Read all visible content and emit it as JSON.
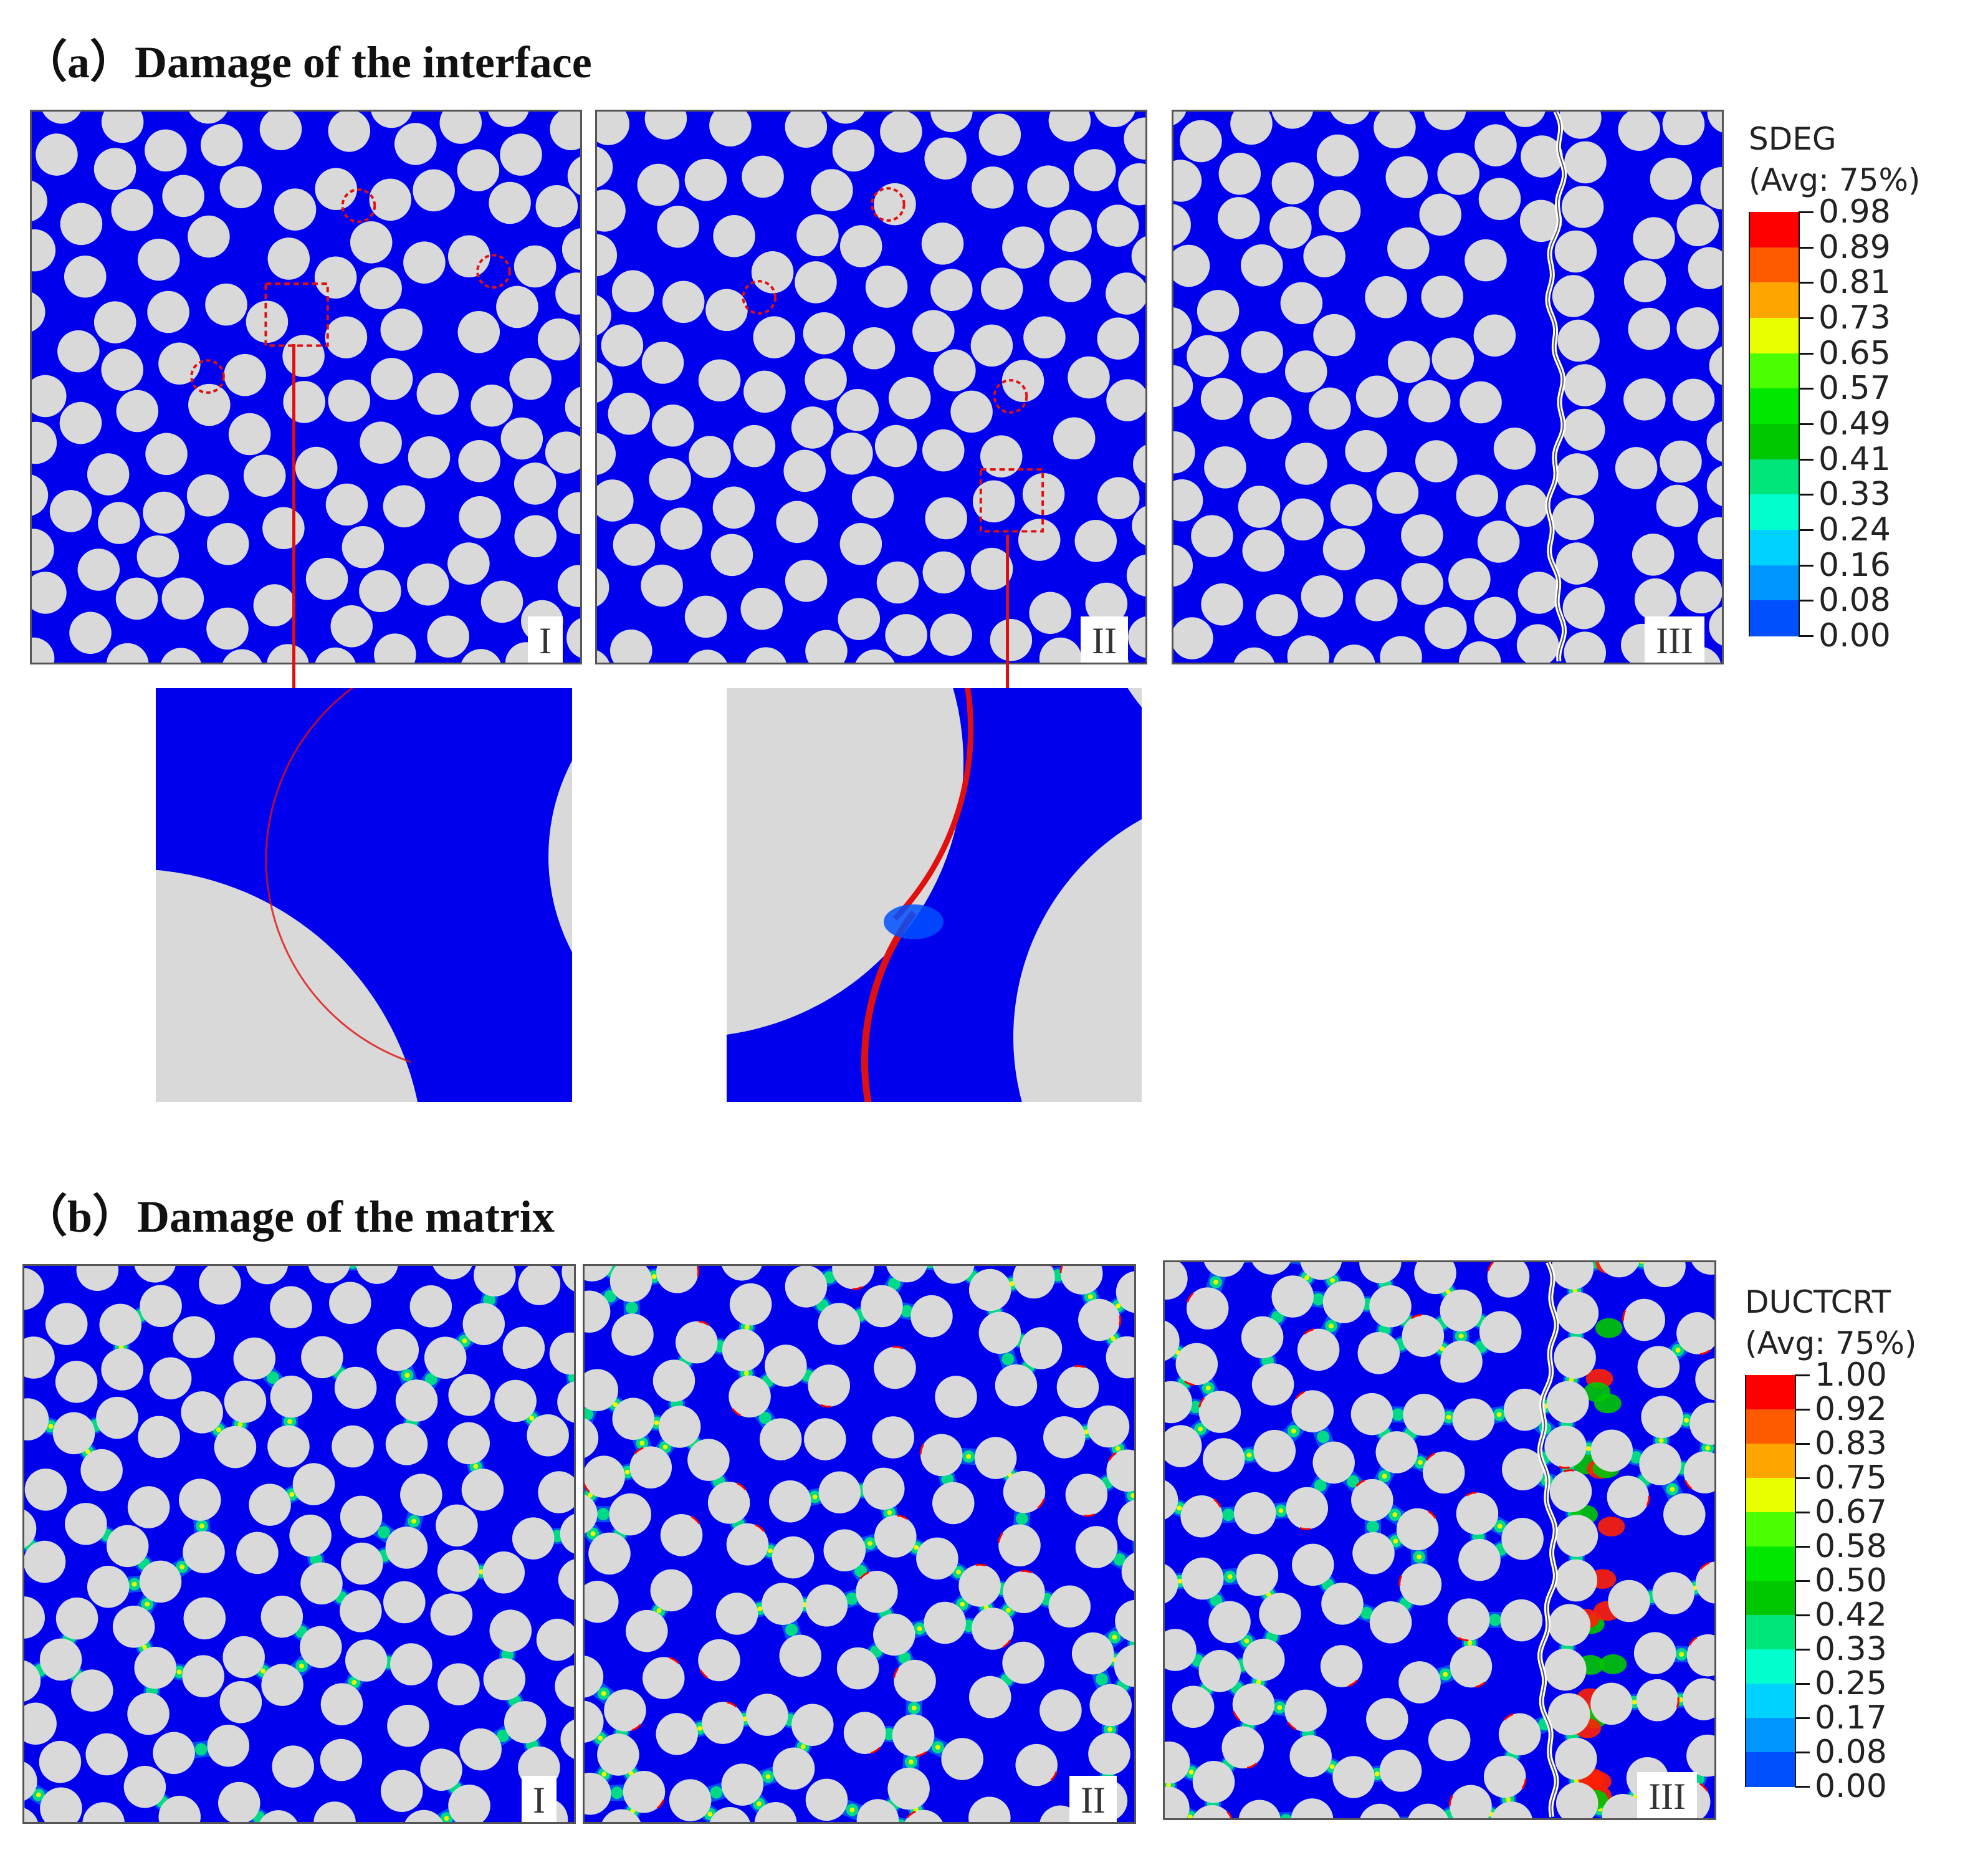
{
  "section_a": {
    "title": "（a）Damage of the interface",
    "panels": [
      {
        "label": "I",
        "seed": 11
      },
      {
        "label": "II",
        "seed": 23
      },
      {
        "label": "III",
        "seed": 37
      }
    ],
    "legend": {
      "title_line1": "SDEG",
      "title_line2": "(Avg: 75%)",
      "values": [
        "0.98",
        "0.89",
        "0.81",
        "0.73",
        "0.65",
        "0.57",
        "0.49",
        "0.41",
        "0.33",
        "0.24",
        "0.16",
        "0.08",
        "0.00"
      ]
    },
    "zoom_panels": [
      "I-detail",
      "II-detail"
    ]
  },
  "section_b": {
    "title": "（b）Damage of the matrix",
    "panels": [
      {
        "label": "I",
        "seed": 53
      },
      {
        "label": "II",
        "seed": 61
      },
      {
        "label": "III",
        "seed": 79
      }
    ],
    "legend": {
      "title_line1": "DUCTCRT",
      "title_line2": "(Avg: 75%)",
      "values": [
        "1.00",
        "0.92",
        "0.83",
        "0.75",
        "0.67",
        "0.58",
        "0.50",
        "0.42",
        "0.33",
        "0.25",
        "0.17",
        "0.08",
        "0.00"
      ]
    }
  },
  "colors": {
    "matrix": "#0000ee",
    "fiber": "#d9d9d9",
    "damage": "#e01010",
    "contour_scale": [
      "#ff0000",
      "#ff5a00",
      "#ffa500",
      "#e8ff00",
      "#4cff00",
      "#00e800",
      "#00c800",
      "#00e67a",
      "#00ffcc",
      "#00d2ff",
      "#0096ff",
      "#0050ff",
      "#0000ff"
    ]
  }
}
